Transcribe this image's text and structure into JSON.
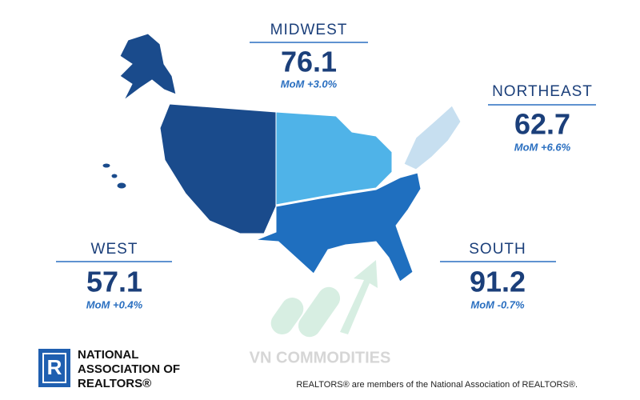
{
  "regions": [
    {
      "name": "MIDWEST",
      "value": 76.1,
      "change": "MoM +3.0%"
    },
    {
      "name": "NORTHEAST",
      "value": 62.7,
      "change": "MoM +6.6%"
    },
    {
      "name": "WEST",
      "value": 57.1,
      "change": "MoM +0.4%"
    },
    {
      "name": "SOUTH",
      "value": 91.2,
      "change": "MoM -0.7%"
    }
  ],
  "logo": {
    "mark": "R",
    "lines": [
      "NATIONAL",
      "ASSOCIATION OF",
      "REALTORS®"
    ]
  },
  "watermark": "VN COMMODITIES",
  "footer": "REALTORS® are members of the National Association of REALTORS®."
}
